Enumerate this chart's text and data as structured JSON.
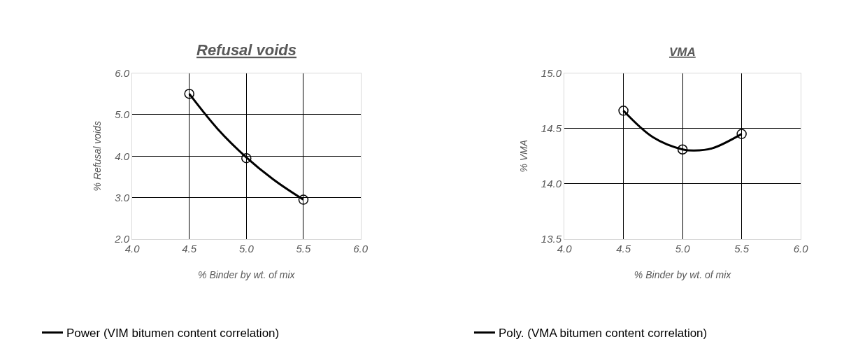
{
  "chart_data": [
    {
      "type": "scatter",
      "title": "Refusal voids",
      "xlabel": "% Binder by wt. of mix",
      "ylabel": "% Refusal voids",
      "xlim": [
        4.0,
        6.0
      ],
      "xticks": [
        {
          "value": 4.0,
          "label": "4.0"
        },
        {
          "value": 4.5,
          "label": "4.5"
        },
        {
          "value": 5.0,
          "label": "5.0"
        },
        {
          "value": 5.5,
          "label": "5.5"
        },
        {
          "value": 6.0,
          "label": "6.0"
        }
      ],
      "ylim": [
        2.0,
        6.0
      ],
      "yticks": [
        {
          "value": 2.0,
          "label": "2.0"
        },
        {
          "value": 3.0,
          "label": "3.0"
        },
        {
          "value": 4.0,
          "label": "4.0"
        },
        {
          "value": 5.0,
          "label": "5.0"
        },
        {
          "value": 6.0,
          "label": "6.0"
        }
      ],
      "grid": true,
      "legend": "bottom",
      "series": [
        {
          "type": "scatter",
          "color": "#000000",
          "marker": "circle",
          "x": [
            4.5,
            5.0,
            5.5
          ],
          "values": [
            5.5,
            3.95,
            2.95
          ]
        },
        {
          "type": "line",
          "name": "Power (VIM bitumen content correlation)",
          "color": "#000000",
          "line_style": "solid",
          "x": [
            4.5,
            4.75,
            5.0,
            5.25,
            5.5
          ],
          "values": [
            5.5,
            4.65,
            3.97,
            3.41,
            2.95
          ]
        }
      ]
    },
    {
      "type": "scatter",
      "title": "VMA",
      "xlabel": "% Binder by wt. of mix",
      "ylabel": "% VMA",
      "xlim": [
        4.0,
        6.0
      ],
      "xticks": [
        {
          "value": 4.0,
          "label": "4.0"
        },
        {
          "value": 4.5,
          "label": "4.5"
        },
        {
          "value": 5.0,
          "label": "5.0"
        },
        {
          "value": 5.5,
          "label": "5.5"
        },
        {
          "value": 6.0,
          "label": "6.0"
        }
      ],
      "ylim": [
        13.5,
        15.0
      ],
      "yticks": [
        {
          "value": 13.5,
          "label": "13.5"
        },
        {
          "value": 14.0,
          "label": "14.0"
        },
        {
          "value": 14.5,
          "label": "14.5"
        },
        {
          "value": 15.0,
          "label": "15.0"
        }
      ],
      "grid": true,
      "legend": "bottom",
      "series": [
        {
          "type": "scatter",
          "color": "#000000",
          "marker": "circle",
          "x": [
            4.5,
            5.0,
            5.5
          ],
          "values": [
            14.66,
            14.31,
            14.45
          ]
        },
        {
          "type": "line",
          "name": "Poly. (VMA bitumen content correlation)",
          "color": "#000000",
          "line_style": "solid",
          "x": [
            4.5,
            4.75,
            5.0,
            5.1,
            5.25,
            5.5
          ],
          "values": [
            14.66,
            14.42,
            14.31,
            14.3,
            14.32,
            14.45
          ]
        }
      ]
    }
  ]
}
